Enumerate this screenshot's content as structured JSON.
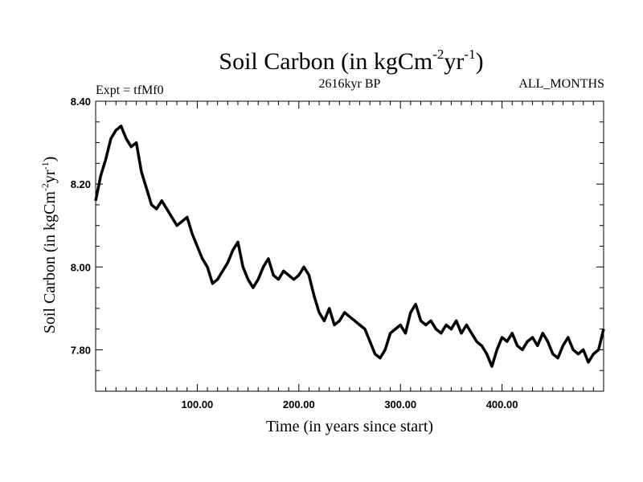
{
  "chart_data": {
    "type": "line",
    "title": {
      "main": "Soil Carbon (in kgCm",
      "sup1": "-2",
      "mid": "yr",
      "sup2": "-1",
      "end": ")"
    },
    "header_left": "Expt = tfMf0",
    "header_center": "2616kyr BP",
    "header_right": "ALL_MONTHS",
    "xlabel": "Time (in years since start)",
    "ylabel": {
      "main": "Soil Carbon (in kgCm",
      "sup1": "-2",
      "mid": "yr",
      "sup2": "-1",
      "end": ")"
    },
    "xlim": [
      0,
      500
    ],
    "ylim": [
      7.7,
      8.4
    ],
    "x_ticks": [
      100,
      200,
      300,
      400
    ],
    "x_tick_labels": [
      "100.00",
      "200.00",
      "300.00",
      "400.00"
    ],
    "y_ticks": [
      7.8,
      8.0,
      8.2,
      8.4
    ],
    "y_tick_labels": [
      "7.80",
      "8.00",
      "8.20",
      "8.40"
    ],
    "grid": false,
    "line_color": "#000000",
    "series": [
      {
        "x": [
          0,
          5,
          10,
          15,
          20,
          25,
          30,
          35,
          40,
          45,
          50,
          55,
          60,
          65,
          70,
          75,
          80,
          85,
          90,
          95,
          100,
          105,
          110,
          115,
          120,
          125,
          130,
          135,
          140,
          145,
          150,
          155,
          160,
          165,
          170,
          175,
          180,
          185,
          190,
          195,
          200,
          205,
          210,
          215,
          220,
          225,
          230,
          235,
          240,
          245,
          250,
          255,
          260,
          265,
          270,
          275,
          280,
          285,
          290,
          295,
          300,
          305,
          310,
          315,
          320,
          325,
          330,
          335,
          340,
          345,
          350,
          355,
          360,
          365,
          370,
          375,
          380,
          385,
          390,
          395,
          400,
          405,
          410,
          415,
          420,
          425,
          430,
          435,
          440,
          445,
          450,
          455,
          460,
          465,
          470,
          475,
          480,
          485,
          490,
          495,
          500
        ],
        "y": [
          8.16,
          8.22,
          8.26,
          8.31,
          8.33,
          8.34,
          8.31,
          8.29,
          8.3,
          8.23,
          8.19,
          8.15,
          8.14,
          8.16,
          8.14,
          8.12,
          8.1,
          8.11,
          8.12,
          8.08,
          8.05,
          8.02,
          8.0,
          7.96,
          7.97,
          7.99,
          8.01,
          8.04,
          8.06,
          8.0,
          7.97,
          7.95,
          7.97,
          8.0,
          8.02,
          7.98,
          7.97,
          7.99,
          7.98,
          7.97,
          7.98,
          8.0,
          7.98,
          7.93,
          7.89,
          7.87,
          7.9,
          7.86,
          7.87,
          7.89,
          7.88,
          7.87,
          7.86,
          7.85,
          7.82,
          7.79,
          7.78,
          7.8,
          7.84,
          7.85,
          7.86,
          7.84,
          7.89,
          7.91,
          7.87,
          7.86,
          7.87,
          7.85,
          7.84,
          7.86,
          7.85,
          7.87,
          7.84,
          7.86,
          7.84,
          7.82,
          7.81,
          7.79,
          7.76,
          7.8,
          7.83,
          7.82,
          7.84,
          7.81,
          7.8,
          7.82,
          7.83,
          7.81,
          7.84,
          7.82,
          7.79,
          7.78,
          7.81,
          7.83,
          7.8,
          7.79,
          7.8,
          7.77,
          7.79,
          7.8,
          7.85
        ]
      }
    ]
  }
}
